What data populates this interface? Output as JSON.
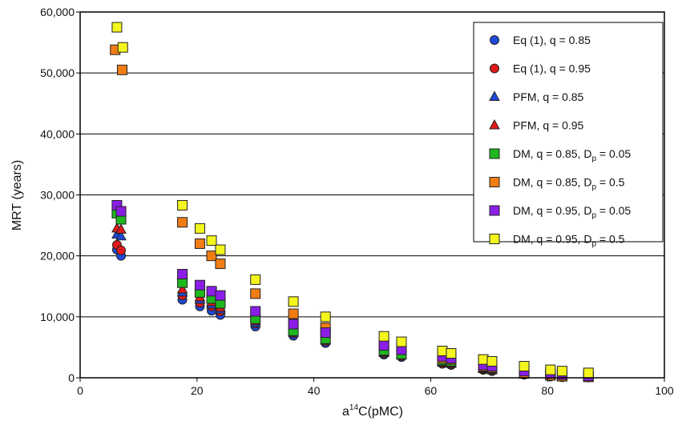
{
  "chart_data": {
    "type": "scatter",
    "xlabel": {
      "base": "a",
      "sup": "14",
      "rest": "C(pMC)"
    },
    "ylabel": "MRT (years)",
    "xlim": [
      0,
      100
    ],
    "ylim": [
      0,
      60000
    ],
    "x_ticks": [
      "0",
      "20",
      "40",
      "60",
      "80",
      "100"
    ],
    "y_ticks": [
      "0",
      "10,000",
      "20,000",
      "30,000",
      "40,000",
      "50,000",
      "60,000"
    ],
    "grid": "horizontal",
    "legend_position": "top-right",
    "series": [
      {
        "name": "Eq (1), q = 0.85",
        "marker": "circle",
        "color": "#1f49d8",
        "x": [
          6.3,
          7.0,
          17.5,
          20.5,
          22.5,
          24.0,
          30.0,
          36.5,
          42.0,
          52.0,
          55.0,
          62.0,
          63.5,
          69.0,
          70.5,
          76.0,
          80.5,
          82.5,
          87.0
        ],
        "y": [
          21000,
          20000,
          12800,
          11700,
          11000,
          10300,
          8400,
          6900,
          5700,
          3800,
          3400,
          2300,
          2100,
          1300,
          1100,
          500,
          200,
          100,
          50
        ]
      },
      {
        "name": "Eq (1), q = 0.95",
        "marker": "circle",
        "color": "#e01a1a",
        "x": [
          6.3,
          7.0,
          17.5,
          20.5,
          22.5,
          24.0,
          30.0,
          36.5,
          42.0,
          52.0,
          55.0,
          62.0,
          63.5,
          69.0,
          70.5,
          76.0,
          80.5,
          82.5,
          87.0
        ],
        "y": [
          21800,
          20900,
          13500,
          12300,
          11700,
          10900,
          8900,
          7300,
          6000,
          4000,
          3600,
          2400,
          2200,
          1400,
          1200,
          550,
          250,
          120,
          60
        ]
      },
      {
        "name": "PFM, q = 0.85",
        "marker": "triangle",
        "color": "#1f49d8",
        "x": [
          6.3,
          7.0,
          17.5,
          20.5,
          22.5,
          24.0,
          30.0,
          36.5,
          42.0,
          52.0,
          55.0,
          62.0,
          63.5,
          69.0,
          70.5,
          76.0,
          80.5,
          82.5,
          87.0
        ],
        "y": [
          23500,
          23200,
          14000,
          12800,
          12000,
          11200,
          9000,
          7400,
          6100,
          4100,
          3700,
          2500,
          2300,
          1450,
          1250,
          600,
          300,
          150,
          80
        ]
      },
      {
        "name": "PFM, q = 0.95",
        "marker": "triangle",
        "color": "#e01a1a",
        "x": [
          6.3,
          7.0,
          17.5,
          20.5,
          22.5,
          24.0,
          30.0,
          36.5,
          42.0,
          52.0,
          55.0,
          62.0,
          63.5,
          69.0,
          70.5,
          76.0,
          80.5,
          82.5,
          87.0
        ],
        "y": [
          24500,
          24300,
          14500,
          13200,
          12400,
          11500,
          9300,
          7600,
          6300,
          4200,
          3800,
          2600,
          2400,
          1500,
          1300,
          650,
          320,
          170,
          90
        ]
      },
      {
        "name": "DM, q = 0.85, D",
        "sub": "p",
        "tail": " = 0.05",
        "marker": "square",
        "color": "#1eb81e",
        "x": [
          6.3,
          7.0,
          17.5,
          20.5,
          22.5,
          24.0,
          30.0,
          36.5,
          42.0,
          52.0,
          55.0,
          62.0,
          63.5,
          69.0,
          70.5,
          76.0,
          80.5,
          82.5,
          87.0
        ],
        "y": [
          27000,
          26000,
          15600,
          14000,
          13000,
          12200,
          9700,
          7700,
          6400,
          4500,
          3900,
          2900,
          2700,
          1800,
          1600,
          900,
          500,
          350,
          200
        ]
      },
      {
        "name": "DM, q = 0.85, D",
        "sub": "p",
        "tail": " = 0.5",
        "marker": "square",
        "color": "#f07d14",
        "x": [
          6.0,
          7.2,
          17.5,
          20.5,
          22.5,
          24.0,
          30.0,
          36.5,
          42.0,
          52.0,
          55.0,
          62.0,
          63.5,
          69.0,
          70.5,
          76.0,
          80.5,
          82.5,
          87.0
        ],
        "y": [
          53800,
          50500,
          25500,
          22000,
          20000,
          18700,
          13800,
          10500,
          8200,
          5500,
          4900,
          3200,
          3000,
          1900,
          1700,
          700,
          400,
          250,
          150
        ]
      },
      {
        "name": "DM, q = 0.95, D",
        "sub": "p",
        "tail": " = 0.05",
        "marker": "square",
        "color": "#8a1ee6",
        "x": [
          6.3,
          7.0,
          17.5,
          20.5,
          22.5,
          24.0,
          30.0,
          36.5,
          42.0,
          52.0,
          55.0,
          62.0,
          63.5,
          69.0,
          70.5,
          76.0,
          80.5,
          82.5,
          87.0
        ],
        "y": [
          28300,
          27300,
          17000,
          15200,
          14200,
          13500,
          10900,
          8800,
          7400,
          5300,
          4600,
          3500,
          3200,
          2100,
          1900,
          1100,
          700,
          500,
          300
        ]
      },
      {
        "name": "DM, q = 0.95, D",
        "sub": "p",
        "tail": " = 0.5",
        "marker": "square",
        "color": "#f5f51e",
        "x": [
          6.3,
          7.3,
          17.5,
          20.5,
          22.5,
          24.0,
          30.0,
          36.5,
          42.0,
          52.0,
          55.0,
          62.0,
          63.5,
          69.0,
          70.5,
          76.0,
          80.5,
          82.5,
          87.0
        ],
        "y": [
          57500,
          54200,
          28300,
          24500,
          22500,
          21000,
          16100,
          12500,
          10000,
          6800,
          5900,
          4400,
          4000,
          3000,
          2700,
          1900,
          1300,
          1100,
          800
        ]
      }
    ]
  }
}
